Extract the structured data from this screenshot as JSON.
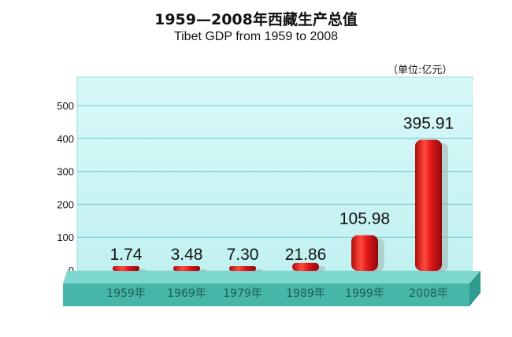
{
  "chart_data": {
    "type": "bar",
    "title": "1959—2008年西藏生产总值",
    "subtitle": "Tibet GDP from 1959 to 2008",
    "unit": "（单位:亿元）",
    "categories": [
      "1959年",
      "1969年",
      "1979年",
      "1989年",
      "1999年",
      "2008年"
    ],
    "values": [
      1.74,
      3.48,
      7.3,
      21.86,
      105.98,
      395.91
    ],
    "value_labels": [
      "1.74",
      "3.48",
      "7.30",
      "21.86",
      "105.98",
      "395.91"
    ],
    "yticks": [
      "0",
      "100",
      "200",
      "300",
      "400",
      "500"
    ],
    "ylim": [
      0,
      500
    ],
    "grid": true,
    "colors": {
      "plot_bg": "#ccf5f5",
      "gridline": "#6cc8c8",
      "bar": "#d81418",
      "bar_dark": "#8c0a0c",
      "base_top": "#7ed8d0",
      "base_front": "#47b5a8"
    }
  }
}
